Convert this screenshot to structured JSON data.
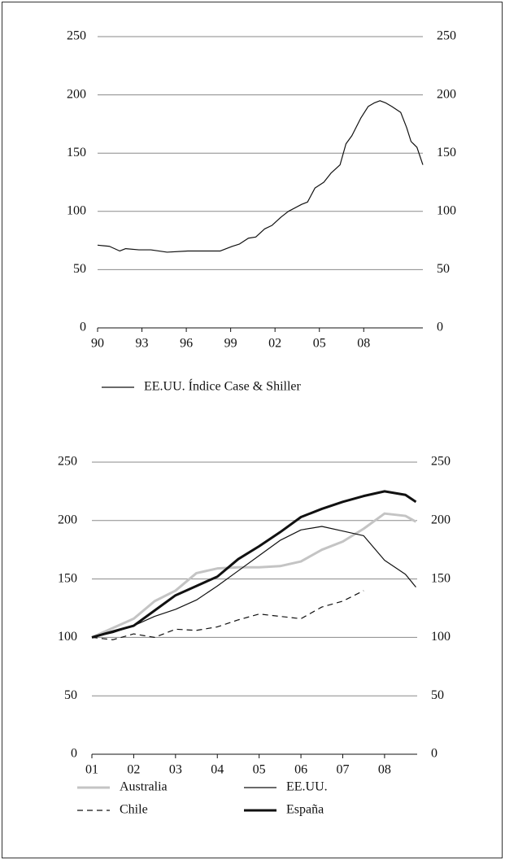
{
  "chart_data": [
    {
      "type": "line",
      "x": [
        1990,
        1990.8,
        1991.5,
        1991.9,
        1992.8,
        1993.6,
        1994.7,
        1996.1,
        1997.4,
        1998.3,
        1999.1,
        1999.6,
        2000.2,
        2000.7,
        2001.3,
        2001.8,
        2002.4,
        2002.9,
        2003.8,
        2004.2,
        2004.7,
        2005.3,
        2005.8,
        2006.4,
        2006.8,
        2007.2,
        2007.8,
        2008.3,
        2008.7,
        2009.1,
        2009.5,
        2009.9,
        2010.5,
        2010.9,
        2011.2,
        2011.6,
        2012
      ],
      "series": [
        {
          "name": "EE.UU. Índice Case & Shiller",
          "color": "#111111",
          "line_width": 1.2,
          "dash": false,
          "values": [
            71,
            70,
            66,
            68,
            67,
            67,
            65,
            66,
            66,
            66,
            70,
            72,
            77,
            78,
            85,
            88,
            95,
            100,
            106,
            108,
            120,
            125,
            133,
            140,
            158,
            165,
            180,
            190,
            193,
            195,
            193,
            190,
            185,
            172,
            160,
            155,
            140
          ]
        }
      ],
      "xlim": [
        1990,
        2012
      ],
      "xticks": [
        {
          "value": 1990,
          "label": "90"
        },
        {
          "value": 1993,
          "label": "93"
        },
        {
          "value": 1996,
          "label": "96"
        },
        {
          "value": 1999,
          "label": "99"
        },
        {
          "value": 2002,
          "label": "02"
        },
        {
          "value": 2005,
          "label": "05"
        },
        {
          "value": 2008,
          "label": "08"
        }
      ],
      "ylim": [
        0,
        250
      ],
      "yticks": [
        0,
        50,
        100,
        150,
        200,
        250
      ],
      "grid": true
    },
    {
      "type": "line",
      "x": [
        2001,
        2001.5,
        2002,
        2002.5,
        2003,
        2003.5,
        2004,
        2004.5,
        2005,
        2005.5,
        2006,
        2006.5,
        2007,
        2007.5,
        2008,
        2008.5,
        2008.75
      ],
      "series": [
        {
          "name": "Australia",
          "color": "#c4c4c4",
          "line_width": 3,
          "dash": false,
          "values": [
            100,
            108,
            116,
            131,
            140,
            155,
            159,
            160,
            160,
            161,
            165,
            175,
            182,
            193,
            206,
            204,
            199
          ]
        },
        {
          "name": "EE.UU.",
          "color": "#111111",
          "line_width": 1.2,
          "dash": false,
          "values": [
            100,
            104,
            110,
            118,
            124,
            132,
            144,
            157,
            170,
            183,
            192,
            195,
            191,
            187,
            166,
            154,
            143
          ]
        },
        {
          "name": "Chile",
          "color": "#111111",
          "line_width": 1.2,
          "dash": true,
          "values": [
            100,
            98,
            103,
            100,
            107,
            106,
            109,
            115,
            120,
            118,
            116,
            126,
            131,
            140,
            null,
            null,
            null
          ]
        },
        {
          "name": "España",
          "color": "#111111",
          "line_width": 3,
          "dash": false,
          "values": [
            100,
            105,
            110,
            123,
            136,
            144,
            152,
            167,
            178,
            190,
            203,
            210,
            216,
            221,
            225,
            222,
            216
          ]
        }
      ],
      "xlim": [
        2001,
        2008.78
      ],
      "xticks": [
        {
          "value": 2001,
          "label": "01"
        },
        {
          "value": 2002,
          "label": "02"
        },
        {
          "value": 2003,
          "label": "03"
        },
        {
          "value": 2004,
          "label": "04"
        },
        {
          "value": 2005,
          "label": "05"
        },
        {
          "value": 2006,
          "label": "06"
        },
        {
          "value": 2007,
          "label": "07"
        },
        {
          "value": 2008,
          "label": "08"
        }
      ],
      "ylim": [
        0,
        250
      ],
      "yticks": [
        0,
        50,
        100,
        150,
        200,
        250
      ],
      "grid": true
    }
  ]
}
